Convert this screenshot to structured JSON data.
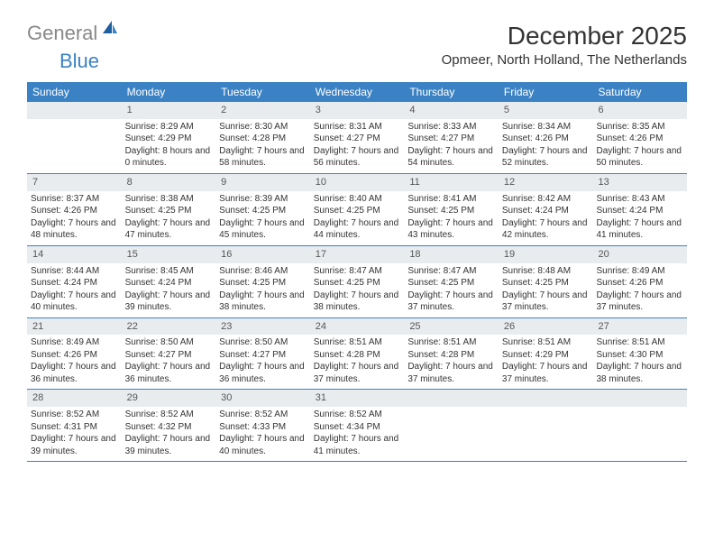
{
  "logo": {
    "general": "General",
    "blue": "Blue"
  },
  "title": "December 2025",
  "location": "Opmeer, North Holland, The Netherlands",
  "colors": {
    "header_bg": "#3b82c4",
    "header_text": "#ffffff",
    "daynum_bg": "#e9ecef",
    "text": "#333333",
    "logo_gray": "#888888",
    "logo_blue": "#3b82c4"
  },
  "weekdays": [
    "Sunday",
    "Monday",
    "Tuesday",
    "Wednesday",
    "Thursday",
    "Friday",
    "Saturday"
  ],
  "weeks": [
    [
      {
        "n": "",
        "sr": "",
        "ss": "",
        "dl": ""
      },
      {
        "n": "1",
        "sr": "Sunrise: 8:29 AM",
        "ss": "Sunset: 4:29 PM",
        "dl": "Daylight: 8 hours and 0 minutes."
      },
      {
        "n": "2",
        "sr": "Sunrise: 8:30 AM",
        "ss": "Sunset: 4:28 PM",
        "dl": "Daylight: 7 hours and 58 minutes."
      },
      {
        "n": "3",
        "sr": "Sunrise: 8:31 AM",
        "ss": "Sunset: 4:27 PM",
        "dl": "Daylight: 7 hours and 56 minutes."
      },
      {
        "n": "4",
        "sr": "Sunrise: 8:33 AM",
        "ss": "Sunset: 4:27 PM",
        "dl": "Daylight: 7 hours and 54 minutes."
      },
      {
        "n": "5",
        "sr": "Sunrise: 8:34 AM",
        "ss": "Sunset: 4:26 PM",
        "dl": "Daylight: 7 hours and 52 minutes."
      },
      {
        "n": "6",
        "sr": "Sunrise: 8:35 AM",
        "ss": "Sunset: 4:26 PM",
        "dl": "Daylight: 7 hours and 50 minutes."
      }
    ],
    [
      {
        "n": "7",
        "sr": "Sunrise: 8:37 AM",
        "ss": "Sunset: 4:26 PM",
        "dl": "Daylight: 7 hours and 48 minutes."
      },
      {
        "n": "8",
        "sr": "Sunrise: 8:38 AM",
        "ss": "Sunset: 4:25 PM",
        "dl": "Daylight: 7 hours and 47 minutes."
      },
      {
        "n": "9",
        "sr": "Sunrise: 8:39 AM",
        "ss": "Sunset: 4:25 PM",
        "dl": "Daylight: 7 hours and 45 minutes."
      },
      {
        "n": "10",
        "sr": "Sunrise: 8:40 AM",
        "ss": "Sunset: 4:25 PM",
        "dl": "Daylight: 7 hours and 44 minutes."
      },
      {
        "n": "11",
        "sr": "Sunrise: 8:41 AM",
        "ss": "Sunset: 4:25 PM",
        "dl": "Daylight: 7 hours and 43 minutes."
      },
      {
        "n": "12",
        "sr": "Sunrise: 8:42 AM",
        "ss": "Sunset: 4:24 PM",
        "dl": "Daylight: 7 hours and 42 minutes."
      },
      {
        "n": "13",
        "sr": "Sunrise: 8:43 AM",
        "ss": "Sunset: 4:24 PM",
        "dl": "Daylight: 7 hours and 41 minutes."
      }
    ],
    [
      {
        "n": "14",
        "sr": "Sunrise: 8:44 AM",
        "ss": "Sunset: 4:24 PM",
        "dl": "Daylight: 7 hours and 40 minutes."
      },
      {
        "n": "15",
        "sr": "Sunrise: 8:45 AM",
        "ss": "Sunset: 4:24 PM",
        "dl": "Daylight: 7 hours and 39 minutes."
      },
      {
        "n": "16",
        "sr": "Sunrise: 8:46 AM",
        "ss": "Sunset: 4:25 PM",
        "dl": "Daylight: 7 hours and 38 minutes."
      },
      {
        "n": "17",
        "sr": "Sunrise: 8:47 AM",
        "ss": "Sunset: 4:25 PM",
        "dl": "Daylight: 7 hours and 38 minutes."
      },
      {
        "n": "18",
        "sr": "Sunrise: 8:47 AM",
        "ss": "Sunset: 4:25 PM",
        "dl": "Daylight: 7 hours and 37 minutes."
      },
      {
        "n": "19",
        "sr": "Sunrise: 8:48 AM",
        "ss": "Sunset: 4:25 PM",
        "dl": "Daylight: 7 hours and 37 minutes."
      },
      {
        "n": "20",
        "sr": "Sunrise: 8:49 AM",
        "ss": "Sunset: 4:26 PM",
        "dl": "Daylight: 7 hours and 37 minutes."
      }
    ],
    [
      {
        "n": "21",
        "sr": "Sunrise: 8:49 AM",
        "ss": "Sunset: 4:26 PM",
        "dl": "Daylight: 7 hours and 36 minutes."
      },
      {
        "n": "22",
        "sr": "Sunrise: 8:50 AM",
        "ss": "Sunset: 4:27 PM",
        "dl": "Daylight: 7 hours and 36 minutes."
      },
      {
        "n": "23",
        "sr": "Sunrise: 8:50 AM",
        "ss": "Sunset: 4:27 PM",
        "dl": "Daylight: 7 hours and 36 minutes."
      },
      {
        "n": "24",
        "sr": "Sunrise: 8:51 AM",
        "ss": "Sunset: 4:28 PM",
        "dl": "Daylight: 7 hours and 37 minutes."
      },
      {
        "n": "25",
        "sr": "Sunrise: 8:51 AM",
        "ss": "Sunset: 4:28 PM",
        "dl": "Daylight: 7 hours and 37 minutes."
      },
      {
        "n": "26",
        "sr": "Sunrise: 8:51 AM",
        "ss": "Sunset: 4:29 PM",
        "dl": "Daylight: 7 hours and 37 minutes."
      },
      {
        "n": "27",
        "sr": "Sunrise: 8:51 AM",
        "ss": "Sunset: 4:30 PM",
        "dl": "Daylight: 7 hours and 38 minutes."
      }
    ],
    [
      {
        "n": "28",
        "sr": "Sunrise: 8:52 AM",
        "ss": "Sunset: 4:31 PM",
        "dl": "Daylight: 7 hours and 39 minutes."
      },
      {
        "n": "29",
        "sr": "Sunrise: 8:52 AM",
        "ss": "Sunset: 4:32 PM",
        "dl": "Daylight: 7 hours and 39 minutes."
      },
      {
        "n": "30",
        "sr": "Sunrise: 8:52 AM",
        "ss": "Sunset: 4:33 PM",
        "dl": "Daylight: 7 hours and 40 minutes."
      },
      {
        "n": "31",
        "sr": "Sunrise: 8:52 AM",
        "ss": "Sunset: 4:34 PM",
        "dl": "Daylight: 7 hours and 41 minutes."
      },
      {
        "n": "",
        "sr": "",
        "ss": "",
        "dl": ""
      },
      {
        "n": "",
        "sr": "",
        "ss": "",
        "dl": ""
      },
      {
        "n": "",
        "sr": "",
        "ss": "",
        "dl": ""
      }
    ]
  ]
}
